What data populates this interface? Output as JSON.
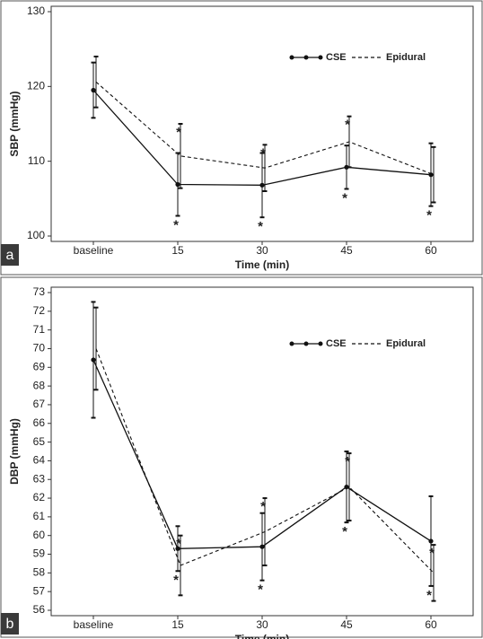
{
  "chart_data": [
    {
      "type": "line",
      "panel_label": "a",
      "xlabel": "Time (min)",
      "ylabel": "SBP  (mmHg)",
      "categories": [
        "baseline",
        "15",
        "30",
        "45",
        "60"
      ],
      "ylim": [
        100,
        130
      ],
      "yticks": [
        100,
        110,
        120,
        130
      ],
      "legend": "top-right",
      "series": [
        {
          "name": "CSE",
          "color": "#111111",
          "dashed": false,
          "markers": true,
          "values": [
            119.5,
            106.9,
            106.8,
            109.2,
            108.2
          ],
          "error": [
            3.7,
            4.2,
            4.3,
            2.9,
            4.2
          ],
          "significance": [
            null,
            "*",
            "*",
            "*",
            "*"
          ]
        },
        {
          "name": "Epidural",
          "color": "#111111",
          "dashed": true,
          "markers": false,
          "values": [
            120.6,
            110.7,
            109.1,
            112.6,
            108.2
          ],
          "error": [
            3.4,
            4.3,
            3.1,
            3.4,
            3.7
          ],
          "significance": [
            null,
            "*",
            "*",
            "*",
            null
          ]
        }
      ]
    },
    {
      "type": "line",
      "panel_label": "b",
      "xlabel": "Time (min)",
      "ylabel": "DBP  (mmHg)",
      "categories": [
        "baseline",
        "15",
        "30",
        "45",
        "60"
      ],
      "ylim": [
        56,
        73
      ],
      "yticks": [
        56,
        57,
        58,
        59,
        60,
        61,
        62,
        63,
        64,
        65,
        66,
        67,
        68,
        69,
        70,
        71,
        72,
        73
      ],
      "legend": "top-right",
      "series": [
        {
          "name": "CSE",
          "color": "#111111",
          "dashed": false,
          "markers": true,
          "values": [
            69.4,
            59.3,
            59.4,
            62.6,
            59.7
          ],
          "error": [
            3.1,
            1.2,
            1.8,
            1.9,
            2.4
          ],
          "significance": [
            null,
            "*",
            "*",
            "*",
            "*"
          ]
        },
        {
          "name": "Epidural",
          "color": "#111111",
          "dashed": true,
          "markers": false,
          "values": [
            70.0,
            58.4,
            60.2,
            62.6,
            58.0
          ],
          "error": [
            2.2,
            1.6,
            1.8,
            1.8,
            1.5
          ],
          "significance": [
            null,
            "*",
            "*",
            "*",
            "*"
          ]
        }
      ]
    }
  ]
}
